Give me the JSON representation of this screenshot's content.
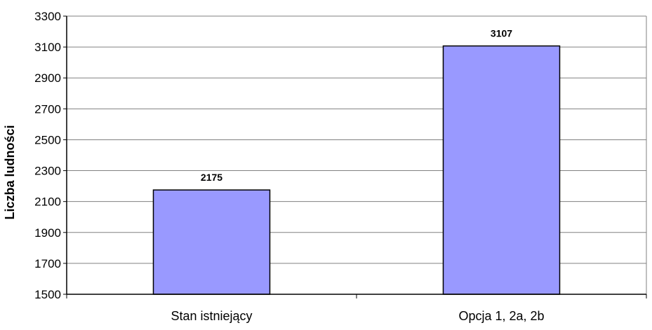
{
  "chart_data": {
    "type": "bar",
    "categories": [
      "Stan istniejący",
      "Opcja 1, 2a, 2b"
    ],
    "values": [
      2175,
      3107
    ],
    "data_labels": [
      "2175",
      "3107"
    ],
    "ylabel": "Liczba ludności",
    "ylim": [
      1500,
      3300
    ],
    "yticks": [
      1500,
      1700,
      1900,
      2100,
      2300,
      2500,
      2700,
      2900,
      3100,
      3300
    ],
    "grid": true,
    "bar_color": "#9999ff",
    "bar_edge_color": "#000000",
    "grid_color": "#808080",
    "legend": "none"
  }
}
